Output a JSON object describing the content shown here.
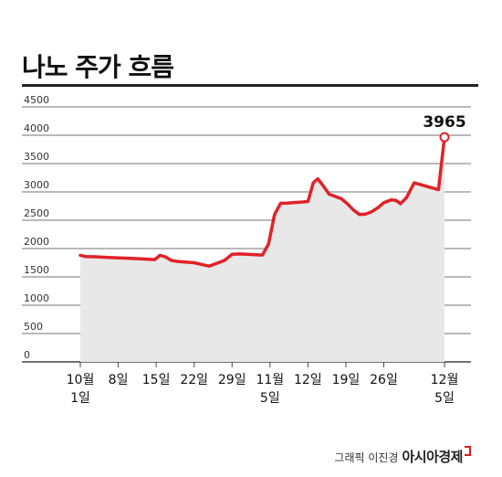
{
  "title": "나노 주가 흐름",
  "credit": {
    "byline": "그래픽 이진경",
    "brand": "아시아경제"
  },
  "colors": {
    "line": "#e02228",
    "area": "#e8e8e8",
    "grid": "#444444"
  },
  "chart_data": {
    "type": "area",
    "title": "나노 주가 흐름",
    "ylim": [
      0,
      4500
    ],
    "yticks": [
      0,
      500,
      1000,
      1500,
      2000,
      2500,
      3000,
      3500,
      4000,
      4500
    ],
    "grid": true,
    "xlim": [
      0,
      48
    ],
    "xticks": [
      {
        "x": 0,
        "lines": [
          "10월",
          "1일"
        ]
      },
      {
        "x": 5,
        "lines": [
          "8일"
        ]
      },
      {
        "x": 10,
        "lines": [
          "15일"
        ]
      },
      {
        "x": 15,
        "lines": [
          "22일"
        ]
      },
      {
        "x": 20,
        "lines": [
          "29일"
        ]
      },
      {
        "x": 25,
        "lines": [
          "11월",
          "5일"
        ]
      },
      {
        "x": 30,
        "lines": [
          "12일"
        ]
      },
      {
        "x": 35,
        "lines": [
          "19일"
        ]
      },
      {
        "x": 40,
        "lines": [
          "26일"
        ]
      },
      {
        "x": 48,
        "lines": [
          "12월",
          "5일"
        ]
      }
    ],
    "series": [
      {
        "x": [
          0,
          0.7,
          2,
          4,
          6,
          8,
          9.8,
          10.5,
          11.2,
          12,
          13,
          14,
          15,
          16,
          17,
          18,
          19,
          20,
          21,
          22,
          24,
          24.8,
          25.6,
          26.4,
          27.2,
          28,
          29,
          30,
          30.7,
          31.3,
          32,
          32.8,
          33.6,
          34.4,
          35.2,
          36,
          36.8,
          37.6,
          38.4,
          39.2,
          40,
          41,
          41.6,
          42.2,
          43,
          44,
          44.8,
          45.6,
          46.4,
          47.2,
          48
        ],
        "y": [
          1880,
          1860,
          1855,
          1840,
          1830,
          1820,
          1805,
          1880,
          1855,
          1790,
          1770,
          1760,
          1750,
          1720,
          1690,
          1740,
          1790,
          1900,
          1905,
          1900,
          1885,
          2080,
          2600,
          2800,
          2800,
          2810,
          2820,
          2830,
          3160,
          3230,
          3110,
          2960,
          2920,
          2880,
          2790,
          2680,
          2600,
          2610,
          2650,
          2720,
          2810,
          2860,
          2850,
          2790,
          2900,
          3160,
          3130,
          3100,
          3070,
          3040,
          3965
        ]
      }
    ],
    "annotations": [
      {
        "x": 48,
        "y": 3965,
        "label": "3965"
      }
    ]
  }
}
